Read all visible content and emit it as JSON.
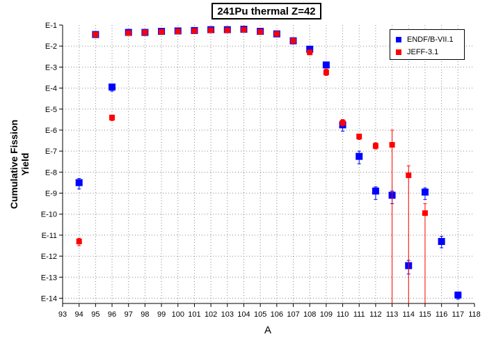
{
  "chart_data": {
    "type": "scatter",
    "title": "241Pu thermal Z=42",
    "xlabel": "A",
    "ylabel": "Cumulative Fission Yield",
    "xlim": [
      93,
      118
    ],
    "ylim": [
      -14.25,
      -1
    ],
    "y_scale": "log10",
    "x_ticks": [
      "93",
      "94",
      "95",
      "96",
      "97",
      "98",
      "99",
      "100",
      "101",
      "102",
      "103",
      "104",
      "105",
      "106",
      "107",
      "108",
      "109",
      "110",
      "111",
      "112",
      "113",
      "114",
      "115",
      "116",
      "117",
      "118"
    ],
    "y_ticks": [
      "E-1",
      "E-2",
      "E-3",
      "E-4",
      "E-5",
      "E-6",
      "E-7",
      "E-8",
      "E-9",
      "E-10",
      "E-11",
      "E-12",
      "E-13",
      "E-14"
    ],
    "grid": true,
    "legend_position": "top-right",
    "series": [
      {
        "name": "ENDF/B-VII.1",
        "color": "#0000ff",
        "marker": "square",
        "points": [
          {
            "x": 94,
            "y": -8.5,
            "lo": -8.8,
            "hi": -8.3
          },
          {
            "x": 95,
            "y": -1.45
          },
          {
            "x": 96,
            "y": -3.95,
            "lo": -4.15,
            "hi": -3.8
          },
          {
            "x": 97,
            "y": -1.35
          },
          {
            "x": 98,
            "y": -1.35
          },
          {
            "x": 99,
            "y": -1.3
          },
          {
            "x": 100,
            "y": -1.28
          },
          {
            "x": 101,
            "y": -1.26
          },
          {
            "x": 102,
            "y": -1.22
          },
          {
            "x": 103,
            "y": -1.22
          },
          {
            "x": 104,
            "y": -1.2
          },
          {
            "x": 105,
            "y": -1.3
          },
          {
            "x": 106,
            "y": -1.42
          },
          {
            "x": 107,
            "y": -1.75
          },
          {
            "x": 108,
            "y": -2.15
          },
          {
            "x": 109,
            "y": -2.9,
            "lo": -3.05,
            "hi": -2.78
          },
          {
            "x": 110,
            "y": -5.75,
            "lo": -6.05,
            "hi": -5.5
          },
          {
            "x": 111,
            "y": -7.25,
            "lo": -7.6,
            "hi": -7.0
          },
          {
            "x": 112,
            "y": -8.9,
            "lo": -9.3,
            "hi": -8.7
          },
          {
            "x": 113,
            "y": -9.1,
            "lo": -9.5,
            "hi": -8.9
          },
          {
            "x": 114,
            "y": -12.45,
            "lo": -12.85,
            "hi": -12.2
          },
          {
            "x": 115,
            "y": -8.95,
            "lo": -9.3,
            "hi": -8.75
          },
          {
            "x": 116,
            "y": -11.3,
            "lo": -11.6,
            "hi": -11.05
          },
          {
            "x": 117,
            "y": -13.85,
            "lo": -14.05,
            "hi": -13.7
          }
        ]
      },
      {
        "name": "JEFF-3.1",
        "color": "#ff0000",
        "marker": "square",
        "points": [
          {
            "x": 94,
            "y": -11.3,
            "lo": -11.5,
            "hi": -11.15
          },
          {
            "x": 95,
            "y": -1.45
          },
          {
            "x": 96,
            "y": -5.4,
            "lo": -5.55,
            "hi": -5.3
          },
          {
            "x": 97,
            "y": -1.38
          },
          {
            "x": 98,
            "y": -1.35
          },
          {
            "x": 99,
            "y": -1.32
          },
          {
            "x": 100,
            "y": -1.3
          },
          {
            "x": 101,
            "y": -1.28
          },
          {
            "x": 102,
            "y": -1.25
          },
          {
            "x": 103,
            "y": -1.25
          },
          {
            "x": 104,
            "y": -1.22
          },
          {
            "x": 105,
            "y": -1.32
          },
          {
            "x": 106,
            "y": -1.42
          },
          {
            "x": 107,
            "y": -1.75
          },
          {
            "x": 108,
            "y": -2.3,
            "lo": -2.4,
            "hi": -2.2
          },
          {
            "x": 109,
            "y": -3.25,
            "lo": -3.4,
            "hi": -3.1
          },
          {
            "x": 110,
            "y": -5.65,
            "lo": -5.8,
            "hi": -5.5
          },
          {
            "x": 111,
            "y": -6.3,
            "lo": -6.45,
            "hi": -6.2
          },
          {
            "x": 112,
            "y": -6.75,
            "lo": -6.9,
            "hi": -6.6
          },
          {
            "x": 113,
            "y": -6.7,
            "lo": -14.25,
            "hi": -6.0
          },
          {
            "x": 114,
            "y": -8.15,
            "lo": -14.25,
            "hi": -7.7
          },
          {
            "x": 115,
            "y": -9.95,
            "lo": -14.25,
            "hi": -9.5
          }
        ]
      }
    ]
  }
}
